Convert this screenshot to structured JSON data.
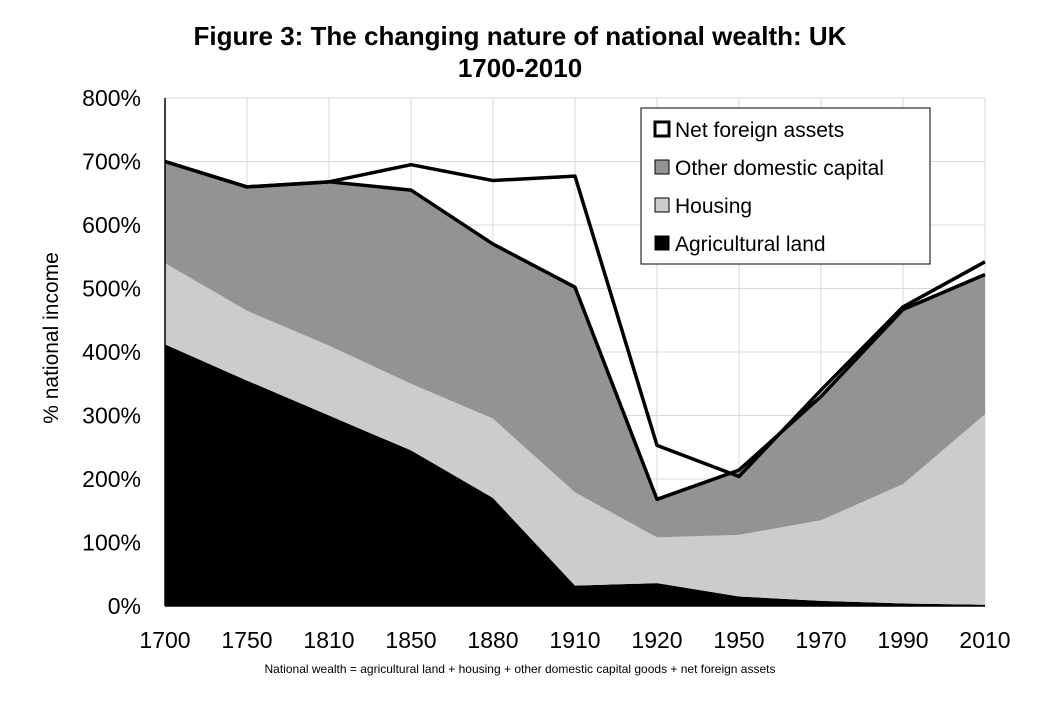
{
  "chart_data": {
    "type": "area",
    "title_line1": "Figure 3: The changing nature of national wealth: UK",
    "title_line2": "1700-2010",
    "ylabel": "% national income",
    "xlabel": "",
    "categories": [
      "1700",
      "1750",
      "1810",
      "1850",
      "1880",
      "1910",
      "1920",
      "1950",
      "1970",
      "1990",
      "2010"
    ],
    "ylim": [
      0,
      800
    ],
    "yticks": [
      0,
      100,
      200,
      300,
      400,
      500,
      600,
      700,
      800
    ],
    "ytick_labels": [
      "0%",
      "100%",
      "200%",
      "300%",
      "400%",
      "500%",
      "600%",
      "700%",
      "800%"
    ],
    "grid": true,
    "legend_position": "top-right",
    "series": [
      {
        "name": "Agricultural land",
        "color": "#000000",
        "values": [
          412,
          355,
          300,
          245,
          170,
          32,
          36,
          15,
          8,
          4,
          2
        ]
      },
      {
        "name": "Housing",
        "color": "#cccccc",
        "values": [
          128,
          110,
          110,
          105,
          125,
          147,
          72,
          97,
          127,
          188,
          300
        ]
      },
      {
        "name": "Other domestic capital",
        "color": "#939393",
        "values": [
          160,
          195,
          258,
          305,
          275,
          323,
          60,
          102,
          195,
          275,
          220
        ]
      },
      {
        "name": "Net foreign assets",
        "color": "#ffffff",
        "values": [
          0,
          0,
          0,
          40,
          100,
          175,
          85,
          -10,
          10,
          4,
          20
        ]
      }
    ],
    "legend_order": [
      "Net foreign assets",
      "Other domestic capital",
      "Housing",
      "Agricultural land"
    ],
    "note": "National wealth = agricultural land + housing + other domestic capital goods + net foreign assets"
  }
}
